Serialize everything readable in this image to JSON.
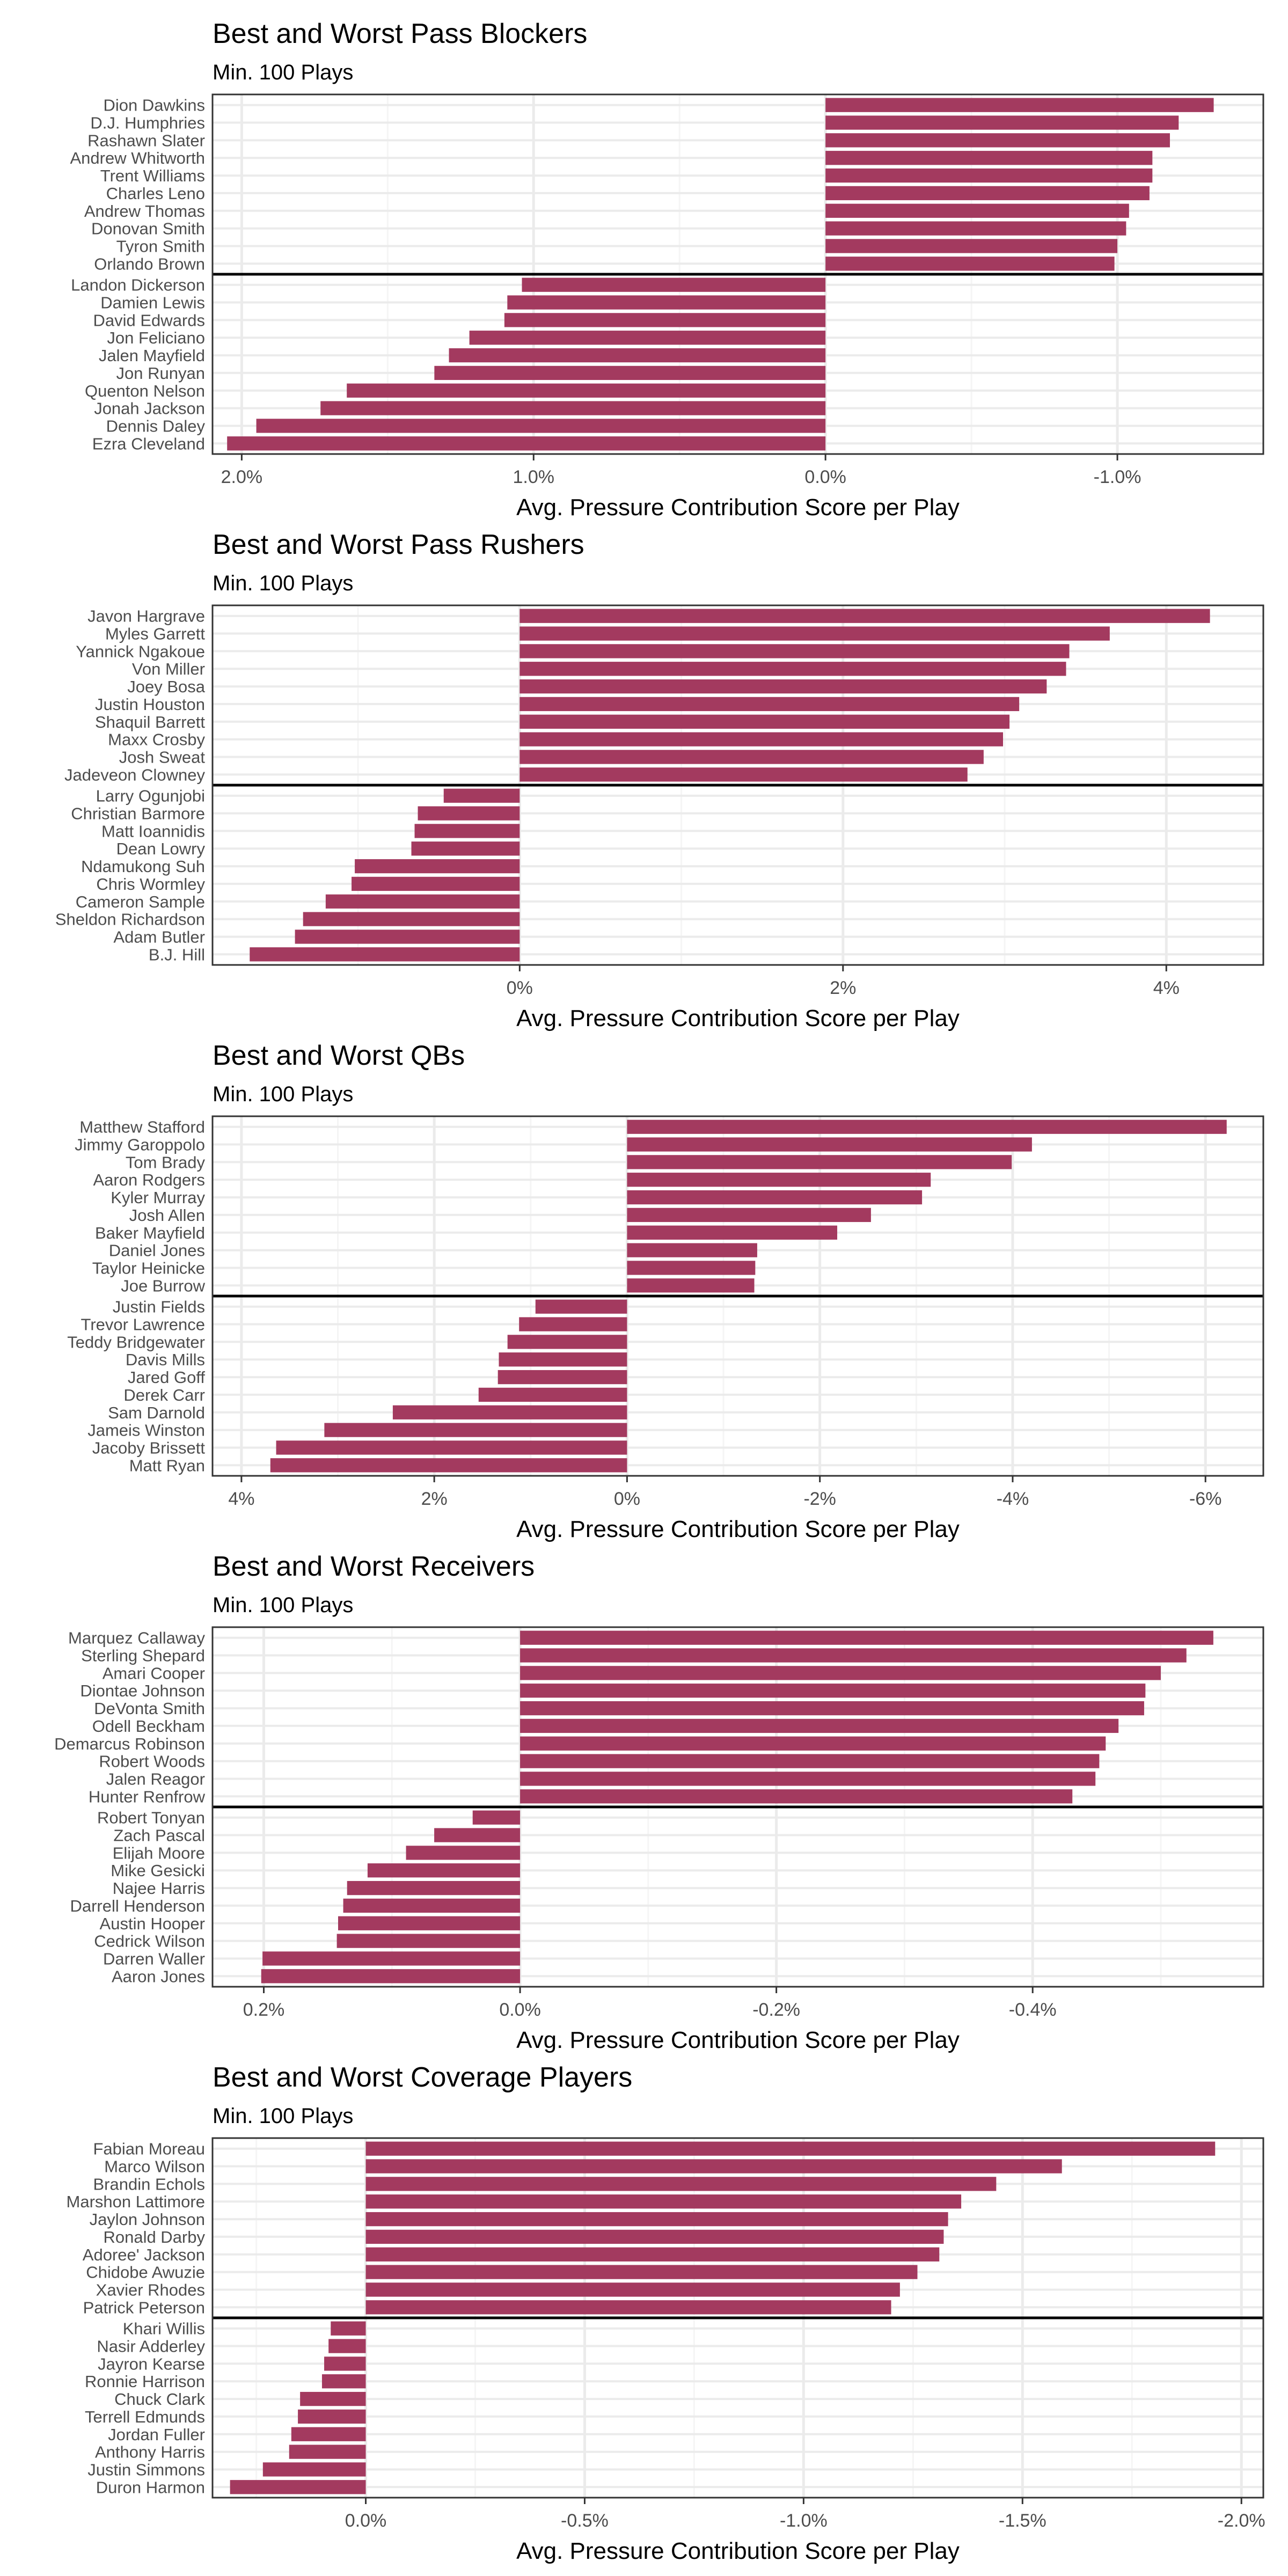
{
  "colors": {
    "bar": "#A33A5F",
    "panel_border": "#333333",
    "grid_major": "#EBEBEB",
    "grid_minor": "#F5F5F5",
    "divider": "#000000",
    "label_text": "#4D4D4D",
    "title_text": "#000000"
  },
  "chart_data": [
    {
      "type": "bar",
      "orientation": "horizontal",
      "title": "Best and Worst Pass Blockers",
      "subtitle": "Min. 100 Plays",
      "xlabel": "Avg. Pressure Contribution Score per Play",
      "x_reversed": true,
      "xlim": [
        2.1,
        -1.5
      ],
      "ticks": [
        {
          "value": 2.0,
          "label": "2.0%"
        },
        {
          "value": 1.0,
          "label": "1.0%"
        },
        {
          "value": 0.0,
          "label": "0.0%"
        },
        {
          "value": -1.0,
          "label": "-1.0%"
        }
      ],
      "top": [
        {
          "name": "Dion Dawkins",
          "value": -1.33
        },
        {
          "name": "D.J. Humphries",
          "value": -1.21
        },
        {
          "name": "Rashawn Slater",
          "value": -1.18
        },
        {
          "name": "Andrew Whitworth",
          "value": -1.12
        },
        {
          "name": "Trent Williams",
          "value": -1.12
        },
        {
          "name": "Charles Leno",
          "value": -1.11
        },
        {
          "name": "Andrew Thomas",
          "value": -1.04
        },
        {
          "name": "Donovan Smith",
          "value": -1.03
        },
        {
          "name": "Tyron Smith",
          "value": -1.0
        },
        {
          "name": "Orlando Brown",
          "value": -0.99
        }
      ],
      "bottom": [
        {
          "name": "Landon Dickerson",
          "value": 1.04
        },
        {
          "name": "Damien Lewis",
          "value": 1.09
        },
        {
          "name": "David Edwards",
          "value": 1.1
        },
        {
          "name": "Jon Feliciano",
          "value": 1.22
        },
        {
          "name": "Jalen Mayfield",
          "value": 1.29
        },
        {
          "name": "Jon Runyan",
          "value": 1.34
        },
        {
          "name": "Quenton Nelson",
          "value": 1.64
        },
        {
          "name": "Jonah Jackson",
          "value": 1.73
        },
        {
          "name": "Dennis Daley",
          "value": 1.95
        },
        {
          "name": "Ezra Cleveland",
          "value": 2.05
        }
      ]
    },
    {
      "type": "bar",
      "orientation": "horizontal",
      "title": "Best and Worst Pass Rushers",
      "subtitle": "Min. 100 Plays",
      "xlabel": "Avg. Pressure Contribution Score per Play",
      "x_reversed": false,
      "xlim": [
        -1.9,
        4.6
      ],
      "ticks": [
        {
          "value": 0,
          "label": "0%"
        },
        {
          "value": 2,
          "label": "2%"
        },
        {
          "value": 4,
          "label": "4%"
        }
      ],
      "top": [
        {
          "name": "Javon Hargrave",
          "value": 4.27
        },
        {
          "name": "Myles Garrett",
          "value": 3.65
        },
        {
          "name": "Yannick Ngakoue",
          "value": 3.4
        },
        {
          "name": "Von Miller",
          "value": 3.38
        },
        {
          "name": "Joey Bosa",
          "value": 3.26
        },
        {
          "name": "Justin Houston",
          "value": 3.09
        },
        {
          "name": "Shaquil Barrett",
          "value": 3.03
        },
        {
          "name": "Maxx Crosby",
          "value": 2.99
        },
        {
          "name": "Josh Sweat",
          "value": 2.87
        },
        {
          "name": "Jadeveon Clowney",
          "value": 2.77
        }
      ],
      "bottom": [
        {
          "name": "Larry Ogunjobi",
          "value": -0.47
        },
        {
          "name": "Christian Barmore",
          "value": -0.63
        },
        {
          "name": "Matt Ioannidis",
          "value": -0.65
        },
        {
          "name": "Dean Lowry",
          "value": -0.67
        },
        {
          "name": "Ndamukong Suh",
          "value": -1.02
        },
        {
          "name": "Chris Wormley",
          "value": -1.04
        },
        {
          "name": "Cameron Sample",
          "value": -1.2
        },
        {
          "name": "Sheldon Richardson",
          "value": -1.34
        },
        {
          "name": "Adam Butler",
          "value": -1.39
        },
        {
          "name": "B.J. Hill",
          "value": -1.67
        }
      ]
    },
    {
      "type": "bar",
      "orientation": "horizontal",
      "title": "Best and Worst QBs",
      "subtitle": "Min. 100 Plays",
      "xlabel": "Avg. Pressure Contribution Score per Play",
      "x_reversed": true,
      "xlim": [
        4.3,
        -6.6
      ],
      "ticks": [
        {
          "value": 4,
          "label": "4%"
        },
        {
          "value": 2,
          "label": "2%"
        },
        {
          "value": 0,
          "label": "0%"
        },
        {
          "value": -2,
          "label": "-2%"
        },
        {
          "value": -4,
          "label": "-4%"
        },
        {
          "value": -6,
          "label": "-6%"
        }
      ],
      "top": [
        {
          "name": "Matthew Stafford",
          "value": -6.22
        },
        {
          "name": "Jimmy Garoppolo",
          "value": -4.2
        },
        {
          "name": "Tom Brady",
          "value": -3.99
        },
        {
          "name": "Aaron Rodgers",
          "value": -3.15
        },
        {
          "name": "Kyler Murray",
          "value": -3.06
        },
        {
          "name": "Josh Allen",
          "value": -2.53
        },
        {
          "name": "Baker Mayfield",
          "value": -2.18
        },
        {
          "name": "Daniel Jones",
          "value": -1.35
        },
        {
          "name": "Taylor Heinicke",
          "value": -1.33
        },
        {
          "name": "Joe Burrow",
          "value": -1.32
        }
      ],
      "bottom": [
        {
          "name": "Justin Fields",
          "value": 0.95
        },
        {
          "name": "Trevor Lawrence",
          "value": 1.12
        },
        {
          "name": "Teddy Bridgewater",
          "value": 1.24
        },
        {
          "name": "Davis Mills",
          "value": 1.33
        },
        {
          "name": "Jared Goff",
          "value": 1.34
        },
        {
          "name": "Derek Carr",
          "value": 1.54
        },
        {
          "name": "Sam Darnold",
          "value": 2.43
        },
        {
          "name": "Jameis Winston",
          "value": 3.14
        },
        {
          "name": "Jacoby Brissett",
          "value": 3.64
        },
        {
          "name": "Matt Ryan",
          "value": 3.7
        }
      ]
    },
    {
      "type": "bar",
      "orientation": "horizontal",
      "title": "Best and Worst Receivers",
      "subtitle": "Min. 100 Plays",
      "xlabel": "Avg. Pressure Contribution Score per Play",
      "x_reversed": true,
      "xlim": [
        0.24,
        -0.58
      ],
      "ticks": [
        {
          "value": 0.2,
          "label": "0.2%"
        },
        {
          "value": 0.0,
          "label": "0.0%"
        },
        {
          "value": -0.2,
          "label": "-0.2%"
        },
        {
          "value": -0.4,
          "label": "-0.4%"
        }
      ],
      "top": [
        {
          "name": "Marquez Callaway",
          "value": -0.541
        },
        {
          "name": "Sterling Shepard",
          "value": -0.52
        },
        {
          "name": "Amari Cooper",
          "value": -0.5
        },
        {
          "name": "Diontae Johnson",
          "value": -0.488
        },
        {
          "name": "DeVonta Smith",
          "value": -0.487
        },
        {
          "name": "Odell Beckham",
          "value": -0.467
        },
        {
          "name": "Demarcus Robinson",
          "value": -0.457
        },
        {
          "name": "Robert Woods",
          "value": -0.452
        },
        {
          "name": "Jalen Reagor",
          "value": -0.449
        },
        {
          "name": "Hunter Renfrow",
          "value": -0.431
        }
      ],
      "bottom": [
        {
          "name": "Robert Tonyan",
          "value": 0.037
        },
        {
          "name": "Zach Pascal",
          "value": 0.067
        },
        {
          "name": "Elijah Moore",
          "value": 0.089
        },
        {
          "name": "Mike Gesicki",
          "value": 0.119
        },
        {
          "name": "Najee Harris",
          "value": 0.135
        },
        {
          "name": "Darrell Henderson",
          "value": 0.138
        },
        {
          "name": "Austin Hooper",
          "value": 0.142
        },
        {
          "name": "Cedrick Wilson",
          "value": 0.143
        },
        {
          "name": "Darren Waller",
          "value": 0.201
        },
        {
          "name": "Aaron Jones",
          "value": 0.202
        }
      ]
    },
    {
      "type": "bar",
      "orientation": "horizontal",
      "title": "Best and Worst Coverage Players",
      "subtitle": "Min. 100 Plays",
      "xlabel": "Avg. Pressure Contribution Score per Play",
      "x_reversed": true,
      "xlim": [
        0.35,
        -2.05
      ],
      "ticks": [
        {
          "value": 0.0,
          "label": "0.0%"
        },
        {
          "value": -0.5,
          "label": "-0.5%"
        },
        {
          "value": -1.0,
          "label": "-1.0%"
        },
        {
          "value": -1.5,
          "label": "-1.5%"
        },
        {
          "value": -2.0,
          "label": "-2.0%"
        }
      ],
      "top": [
        {
          "name": "Fabian Moreau",
          "value": -1.94
        },
        {
          "name": "Marco Wilson",
          "value": -1.59
        },
        {
          "name": "Brandin Echols",
          "value": -1.44
        },
        {
          "name": "Marshon Lattimore",
          "value": -1.36
        },
        {
          "name": "Jaylon Johnson",
          "value": -1.33
        },
        {
          "name": "Ronald Darby",
          "value": -1.32
        },
        {
          "name": "Adoree' Jackson",
          "value": -1.31
        },
        {
          "name": "Chidobe Awuzie",
          "value": -1.26
        },
        {
          "name": "Xavier Rhodes",
          "value": -1.22
        },
        {
          "name": "Patrick Peterson",
          "value": -1.2
        }
      ],
      "bottom": [
        {
          "name": "Khari Willis",
          "value": 0.08
        },
        {
          "name": "Nasir Adderley",
          "value": 0.085
        },
        {
          "name": "Jayron Kearse",
          "value": 0.095
        },
        {
          "name": "Ronnie Harrison",
          "value": 0.1
        },
        {
          "name": "Chuck Clark",
          "value": 0.15
        },
        {
          "name": "Terrell Edmunds",
          "value": 0.155
        },
        {
          "name": "Jordan Fuller",
          "value": 0.17
        },
        {
          "name": "Anthony Harris",
          "value": 0.175
        },
        {
          "name": "Justin Simmons",
          "value": 0.235
        },
        {
          "name": "Duron Harmon",
          "value": 0.31
        }
      ]
    }
  ]
}
